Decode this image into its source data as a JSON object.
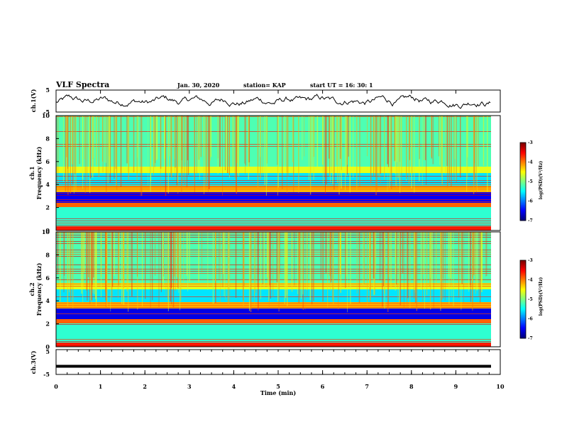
{
  "header": {
    "title": "VLF Spectra",
    "date": "Jan. 30, 2020",
    "station": "station= KAP",
    "start": "start  UT =   16: 30: 1"
  },
  "chart_data": [
    {
      "type": "line",
      "name": "ch1-waveform",
      "ylabel": "ch.1(V)",
      "ylim": [
        -5,
        5
      ],
      "yticks": [
        "5",
        "-5"
      ],
      "xlim": [
        0,
        10
      ]
    },
    {
      "type": "heatmap",
      "name": "ch1-spectrogram",
      "ylabel_line1": "ch.1",
      "ylabel_line2": "Frequency (kHz)",
      "ylim": [
        0,
        10
      ],
      "yticks": [
        "0",
        "2",
        "4",
        "6",
        "8",
        "10"
      ],
      "xlim": [
        0,
        10
      ],
      "colorbar": {
        "label": "log(PSD)(V²/Hz)",
        "range": [
          -7,
          -3
        ],
        "ticks": [
          "-3",
          "-4",
          "-5",
          "-6",
          "-7"
        ]
      }
    },
    {
      "type": "heatmap",
      "name": "ch2-spectrogram",
      "ylabel_line1": "ch.2",
      "ylabel_line2": "Frequency (kHz)",
      "ylim": [
        0,
        10
      ],
      "yticks": [
        "0",
        "2",
        "4",
        "6",
        "8",
        "10"
      ],
      "xlim": [
        0,
        10
      ],
      "colorbar": {
        "label": "log(PSD)(V²/Hz)",
        "range": [
          -7,
          -3
        ],
        "ticks": [
          "-3",
          "-4",
          "-5",
          "-6",
          "-7"
        ]
      }
    },
    {
      "type": "line",
      "name": "ch3-waveform",
      "ylabel": "ch.3(V)",
      "ylim": [
        -5,
        5
      ],
      "yticks": [
        "5",
        "-5"
      ],
      "xlim": [
        0,
        10
      ],
      "level": -1.7
    }
  ],
  "xaxis": {
    "label": "Time (min)",
    "ticks": [
      "0",
      "1",
      "2",
      "3",
      "4",
      "5",
      "6",
      "7",
      "8",
      "9",
      "10"
    ]
  }
}
